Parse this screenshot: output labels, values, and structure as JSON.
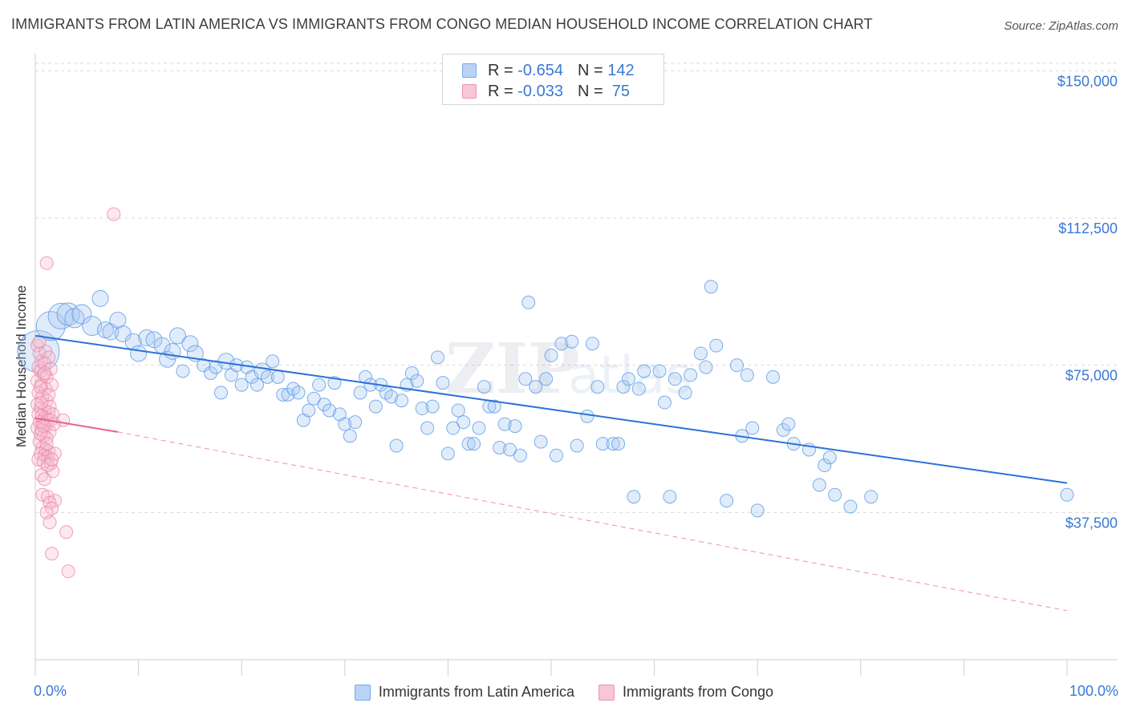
{
  "header": {
    "title": "IMMIGRANTS FROM LATIN AMERICA VS IMMIGRANTS FROM CONGO MEDIAN HOUSEHOLD INCOME CORRELATION CHART",
    "source": "Source: ZipAtlas.com"
  },
  "legend": {
    "r_label": "R =",
    "n_label": "N =",
    "rows": [
      {
        "r": "-0.654",
        "n": "142"
      },
      {
        "r": "-0.033",
        "n": " 75"
      }
    ]
  },
  "bottom_legend": [
    "Immigrants from Latin America",
    "Immigrants from Congo"
  ],
  "colors": {
    "blue": "#5b9be8",
    "blue_line": "#2b72d6",
    "pink": "#f08aab",
    "pink_line": "#e8628d",
    "axis_text": "#3a78d4"
  },
  "chart_data": {
    "type": "scatter",
    "title": "IMMIGRANTS FROM LATIN AMERICA VS IMMIGRANTS FROM CONGO MEDIAN HOUSEHOLD INCOME CORRELATION CHART",
    "xlabel": "",
    "ylabel": "Median Household Income",
    "xlim": [
      0,
      100
    ],
    "ylim": [
      0,
      157000
    ],
    "x_tick_labels": [
      "0.0%",
      "100.0%"
    ],
    "y_tick_labels": [
      "$37,500",
      "$75,000",
      "$112,500",
      "$150,000"
    ],
    "y_ticks": [
      37500,
      75000,
      112500,
      150000
    ],
    "grid": true,
    "legend_position": "top-center",
    "series": [
      {
        "name": "Immigrants from Latin America",
        "color": "#5b9be8",
        "r": -0.654,
        "n": 142,
        "trend": {
          "x": [
            0,
            100
          ],
          "y": [
            82500,
            45000
          ]
        },
        "points": [
          [
            0.3,
            78500,
            26
          ],
          [
            1.5,
            85000,
            18
          ],
          [
            2.5,
            87500,
            16
          ],
          [
            3.2,
            88000,
            14
          ],
          [
            3.8,
            87000,
            12
          ],
          [
            4.5,
            88000,
            12
          ],
          [
            5.5,
            85000,
            12
          ],
          [
            6.3,
            92000,
            10
          ],
          [
            6.8,
            84000,
            10
          ],
          [
            7.3,
            83500,
            10
          ],
          [
            8,
            86500,
            10
          ],
          [
            8.5,
            83000,
            10
          ],
          [
            9.5,
            81000,
            10
          ],
          [
            10,
            78000,
            10
          ],
          [
            10.8,
            82000,
            10
          ],
          [
            11.5,
            81500,
            10
          ],
          [
            12.3,
            80000,
            10
          ],
          [
            12.8,
            76500,
            10
          ],
          [
            13.3,
            78500,
            10
          ],
          [
            13.8,
            82500,
            10
          ],
          [
            14.3,
            73500,
            8
          ],
          [
            15,
            80500,
            10
          ],
          [
            15.5,
            78000,
            10
          ],
          [
            16.3,
            75000,
            8
          ],
          [
            17,
            73000,
            8
          ],
          [
            17.5,
            74500,
            8
          ],
          [
            18,
            68000,
            8
          ],
          [
            18.5,
            76000,
            10
          ],
          [
            19,
            72500,
            8
          ],
          [
            19.5,
            75000,
            8
          ],
          [
            20,
            70000,
            8
          ],
          [
            20.5,
            74500,
            8
          ],
          [
            21,
            72000,
            8
          ],
          [
            21.5,
            70000,
            8
          ],
          [
            22,
            73500,
            10
          ],
          [
            22.5,
            72000,
            8
          ],
          [
            23,
            76000,
            8
          ],
          [
            23.5,
            72000,
            8
          ],
          [
            24,
            67500,
            8
          ],
          [
            24.5,
            67500,
            8
          ],
          [
            25,
            69000,
            8
          ],
          [
            25.5,
            68000,
            8
          ],
          [
            26,
            61000,
            8
          ],
          [
            26.5,
            63500,
            8
          ],
          [
            27,
            66500,
            8
          ],
          [
            27.5,
            70000,
            8
          ],
          [
            28,
            65000,
            8
          ],
          [
            28.5,
            63500,
            8
          ],
          [
            29,
            70500,
            8
          ],
          [
            29.5,
            62500,
            8
          ],
          [
            30,
            60000,
            8
          ],
          [
            30.5,
            57000,
            8
          ],
          [
            31,
            60500,
            8
          ],
          [
            31.5,
            68000,
            8
          ],
          [
            32,
            72000,
            8
          ],
          [
            32.5,
            70000,
            8
          ],
          [
            33,
            64500,
            8
          ],
          [
            33.5,
            70000,
            8
          ],
          [
            34,
            68000,
            8
          ],
          [
            34.5,
            67000,
            8
          ],
          [
            35,
            54500,
            8
          ],
          [
            35.5,
            66000,
            8
          ],
          [
            36,
            70000,
            8
          ],
          [
            36.5,
            73000,
            8
          ],
          [
            37,
            71000,
            8
          ],
          [
            37.5,
            64000,
            8
          ],
          [
            38,
            59000,
            8
          ],
          [
            38.5,
            64500,
            8
          ],
          [
            39,
            77000,
            8
          ],
          [
            39.5,
            70500,
            8
          ],
          [
            40,
            52500,
            8
          ],
          [
            40.5,
            59000,
            8
          ],
          [
            41,
            63500,
            8
          ],
          [
            41.5,
            60500,
            8
          ],
          [
            42,
            55000,
            8
          ],
          [
            42.5,
            55000,
            8
          ],
          [
            43,
            59000,
            8
          ],
          [
            43.5,
            69500,
            8
          ],
          [
            44,
            64500,
            8
          ],
          [
            44.5,
            64500,
            8
          ],
          [
            45,
            54000,
            8
          ],
          [
            45.5,
            60000,
            8
          ],
          [
            46,
            53500,
            8
          ],
          [
            46.5,
            59500,
            8
          ],
          [
            47,
            52000,
            8
          ],
          [
            47.5,
            71500,
            8
          ],
          [
            47.8,
            91000,
            8
          ],
          [
            48.5,
            69500,
            8
          ],
          [
            49,
            55500,
            8
          ],
          [
            49.5,
            71500,
            8
          ],
          [
            50,
            77500,
            8
          ],
          [
            50.5,
            52000,
            8
          ],
          [
            51,
            80500,
            8
          ],
          [
            52,
            81000,
            8
          ],
          [
            52.5,
            54500,
            8
          ],
          [
            53.5,
            62000,
            8
          ],
          [
            54,
            80500,
            8
          ],
          [
            54.5,
            69500,
            8
          ],
          [
            55,
            55000,
            8
          ],
          [
            56,
            55000,
            8
          ],
          [
            56.5,
            55000,
            8
          ],
          [
            57,
            69500,
            8
          ],
          [
            57.5,
            71500,
            8
          ],
          [
            58,
            41500,
            8
          ],
          [
            58.5,
            69000,
            8
          ],
          [
            59,
            73500,
            8
          ],
          [
            60.5,
            73500,
            8
          ],
          [
            61,
            65500,
            8
          ],
          [
            61.5,
            41500,
            8
          ],
          [
            62,
            71500,
            8
          ],
          [
            63,
            68000,
            8
          ],
          [
            63.5,
            72500,
            8
          ],
          [
            64.5,
            78000,
            8
          ],
          [
            65,
            74500,
            8
          ],
          [
            65.5,
            95000,
            8
          ],
          [
            66,
            80000,
            8
          ],
          [
            67,
            40500,
            8
          ],
          [
            68,
            75000,
            8
          ],
          [
            68.5,
            57000,
            8
          ],
          [
            69,
            72500,
            8
          ],
          [
            69.5,
            59000,
            8
          ],
          [
            70,
            38000,
            8
          ],
          [
            71.5,
            72000,
            8
          ],
          [
            72.5,
            58500,
            8
          ],
          [
            73,
            60000,
            8
          ],
          [
            73.5,
            55000,
            8
          ],
          [
            75,
            53500,
            8
          ],
          [
            76,
            44500,
            8
          ],
          [
            76.5,
            49500,
            8
          ],
          [
            77,
            51500,
            8
          ],
          [
            77.5,
            42000,
            8
          ],
          [
            79,
            39000,
            8
          ],
          [
            81,
            41500,
            8
          ],
          [
            100,
            42000,
            8
          ]
        ]
      },
      {
        "name": "Immigrants from Congo",
        "color": "#f08aab",
        "r": -0.033,
        "n": 75,
        "trend": {
          "x": [
            0,
            8
          ],
          "y": [
            61500,
            58000
          ]
        },
        "trend_dashed": {
          "x": [
            8,
            100
          ],
          "y": [
            58000,
            12500
          ]
        },
        "points": [
          [
            0.2,
            80000,
            8
          ],
          [
            0.4,
            78000,
            8
          ],
          [
            0.6,
            76000,
            8
          ],
          [
            0.3,
            74500,
            8
          ],
          [
            0.5,
            73500,
            8
          ],
          [
            0.8,
            72500,
            8
          ],
          [
            0.2,
            71000,
            8
          ],
          [
            0.6,
            70000,
            8
          ],
          [
            1,
            69000,
            8
          ],
          [
            0.3,
            68000,
            8
          ],
          [
            0.7,
            67000,
            8
          ],
          [
            1.1,
            66000,
            8
          ],
          [
            0.2,
            65000,
            8
          ],
          [
            0.5,
            64000,
            8
          ],
          [
            0.9,
            63500,
            8
          ],
          [
            1.3,
            63000,
            8
          ],
          [
            0.3,
            62500,
            8
          ],
          [
            0.6,
            62000,
            8
          ],
          [
            0.9,
            61500,
            8
          ],
          [
            1.2,
            61000,
            8
          ],
          [
            0.4,
            60500,
            8
          ],
          [
            0.7,
            60000,
            8
          ],
          [
            1,
            59500,
            8
          ],
          [
            0.2,
            59000,
            8
          ],
          [
            0.6,
            58500,
            8
          ],
          [
            1.4,
            58000,
            8
          ],
          [
            0.8,
            57000,
            8
          ],
          [
            1.1,
            56500,
            8
          ],
          [
            0.4,
            55500,
            8
          ],
          [
            0.7,
            54000,
            8
          ],
          [
            1,
            53500,
            8
          ],
          [
            1.3,
            53000,
            8
          ],
          [
            0.5,
            52500,
            8
          ],
          [
            0.9,
            52000,
            8
          ],
          [
            1.2,
            51500,
            8
          ],
          [
            0.3,
            51000,
            8
          ],
          [
            0.8,
            50500,
            8
          ],
          [
            1.5,
            50000,
            8
          ],
          [
            1.7,
            48000,
            8
          ],
          [
            0.6,
            47000,
            8
          ],
          [
            1,
            78500,
            8
          ],
          [
            1.3,
            77000,
            8
          ],
          [
            0.9,
            75500,
            8
          ],
          [
            1.5,
            74000,
            8
          ],
          [
            1.1,
            72000,
            8
          ],
          [
            1.6,
            70000,
            8
          ],
          [
            0.5,
            69500,
            8
          ],
          [
            1.4,
            64500,
            8
          ],
          [
            1.7,
            62500,
            8
          ],
          [
            1.5,
            61000,
            8
          ],
          [
            2.7,
            61000,
            8
          ],
          [
            1.8,
            60000,
            8
          ],
          [
            0.6,
            65500,
            8
          ],
          [
            0.8,
            59500,
            8
          ],
          [
            1.9,
            52500,
            8
          ],
          [
            1.2,
            49500,
            8
          ],
          [
            0.7,
            42000,
            8
          ],
          [
            1.2,
            41500,
            8
          ],
          [
            1.9,
            40500,
            8
          ],
          [
            1.4,
            40000,
            8
          ],
          [
            1.6,
            38500,
            8
          ],
          [
            1.1,
            37500,
            8
          ],
          [
            1.4,
            35000,
            8
          ],
          [
            3,
            32500,
            8
          ],
          [
            1.6,
            27000,
            8
          ],
          [
            3.2,
            22500,
            8
          ],
          [
            1.1,
            101000,
            8
          ],
          [
            7.6,
            113500,
            8
          ],
          [
            0.4,
            81000,
            8
          ],
          [
            0.9,
            73000,
            8
          ],
          [
            1.3,
            67500,
            8
          ],
          [
            0.5,
            57500,
            8
          ],
          [
            1.1,
            55000,
            8
          ],
          [
            1.6,
            51000,
            8
          ],
          [
            0.9,
            46000,
            8
          ]
        ]
      }
    ]
  }
}
